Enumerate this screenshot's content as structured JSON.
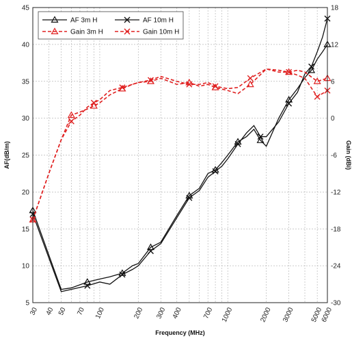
{
  "chart_data": {
    "type": "line",
    "xlabel": "Frequency (MHz)",
    "ylabel_left": "AF(dB/m)",
    "ylabel_right": "Gain (dBi)",
    "x_scale": "log",
    "xlim": [
      30,
      6000
    ],
    "ylim_left": [
      5,
      45
    ],
    "ylim_right": [
      -30,
      18
    ],
    "x_ticks": [
      30,
      40,
      50,
      70,
      100,
      200,
      300,
      400,
      700,
      1000,
      2000,
      3000,
      5000,
      6000
    ],
    "x_tick_labels": [
      "30",
      "40",
      "50",
      "70",
      "100",
      "200",
      "300",
      "400",
      "700",
      "1000",
      "2000",
      "3000",
      "5000",
      "6000"
    ],
    "y_left_ticks": [
      5,
      10,
      15,
      20,
      25,
      30,
      35,
      40,
      45
    ],
    "y_left_tick_labels": [
      "5",
      "10",
      "15",
      "20",
      "25",
      "30",
      "35",
      "40",
      "45"
    ],
    "y_right_ticks": [
      -30,
      -24,
      -18,
      -12,
      -6,
      0,
      6,
      12,
      18
    ],
    "y_right_tick_labels": [
      "-30",
      "-24",
      "-18",
      "-12",
      "-6",
      "0",
      "6",
      "12",
      "18"
    ],
    "grid": true,
    "legend_position": "top-left",
    "series": [
      {
        "name": "AF 3m H",
        "axis": "left",
        "color": "#111111",
        "line": "solid",
        "marker": "triangle",
        "x": [
          30,
          50,
          60,
          80,
          100,
          120,
          150,
          180,
          200,
          250,
          300,
          400,
          500,
          600,
          700,
          800,
          900,
          1000,
          1200,
          1400,
          1600,
          1800,
          2000,
          2500,
          3000,
          3500,
          4000,
          4500,
          5000,
          5500,
          6000
        ],
        "y": [
          17.5,
          6.8,
          7.0,
          7.8,
          8.2,
          8.5,
          9.0,
          10.0,
          10.3,
          12.5,
          13.2,
          16.8,
          19.5,
          20.5,
          22.5,
          23.0,
          24.0,
          25.0,
          26.8,
          27.5,
          28.5,
          27.0,
          26.2,
          30.0,
          32.5,
          34.0,
          35.5,
          36.5,
          38.0,
          39.0,
          40.0
        ]
      },
      {
        "name": "AF 10m H",
        "axis": "left",
        "color": "#111111",
        "line": "solid",
        "marker": "x",
        "x": [
          30,
          50,
          60,
          80,
          100,
          120,
          150,
          180,
          200,
          250,
          300,
          400,
          500,
          600,
          700,
          800,
          900,
          1000,
          1200,
          1400,
          1600,
          1800,
          2000,
          2500,
          3000,
          3500,
          4000,
          4500,
          5000,
          5500,
          6000
        ],
        "y": [
          17.0,
          6.5,
          6.8,
          7.3,
          7.8,
          7.5,
          8.8,
          9.5,
          10.0,
          12.0,
          13.0,
          16.5,
          19.2,
          20.2,
          22.0,
          22.8,
          23.5,
          24.5,
          26.5,
          28.0,
          29.0,
          27.5,
          27.5,
          29.5,
          32.0,
          33.5,
          36.0,
          37.0,
          39.0,
          41.0,
          43.5
        ]
      },
      {
        "name": "Gain 3m H",
        "axis": "right",
        "color": "#e02020",
        "line": "dashed",
        "marker": "triangle",
        "x": [
          30,
          40,
          50,
          60,
          70,
          80,
          90,
          100,
          120,
          150,
          180,
          200,
          250,
          300,
          400,
          500,
          600,
          700,
          800,
          1000,
          1200,
          1500,
          2000,
          2500,
          3000,
          3500,
          4000,
          5000,
          6000
        ],
        "y": [
          -16.5,
          -9.0,
          -3.5,
          0.5,
          1.0,
          1.5,
          2.0,
          2.5,
          3.8,
          4.8,
          5.5,
          5.8,
          6.0,
          6.5,
          5.5,
          5.8,
          5.2,
          5.5,
          5.0,
          4.5,
          4.0,
          5.5,
          8.0,
          7.5,
          7.5,
          7.8,
          7.5,
          6.0,
          6.5
        ]
      },
      {
        "name": "Gain 10m H",
        "axis": "right",
        "color": "#e02020",
        "line": "dashed",
        "marker": "x",
        "x": [
          30,
          40,
          50,
          60,
          70,
          80,
          90,
          100,
          120,
          150,
          180,
          200,
          250,
          300,
          400,
          500,
          600,
          700,
          800,
          1000,
          1200,
          1500,
          2000,
          2500,
          3000,
          3500,
          4000,
          5000,
          6000
        ],
        "y": [
          -16.5,
          -9.0,
          -3.5,
          -0.5,
          0.5,
          1.8,
          2.5,
          3.0,
          4.5,
          5.0,
          5.5,
          5.8,
          6.2,
          6.8,
          6.0,
          5.5,
          5.5,
          5.8,
          5.2,
          4.8,
          5.0,
          6.5,
          8.0,
          7.8,
          7.5,
          7.0,
          6.5,
          3.5,
          4.5
        ]
      }
    ]
  }
}
